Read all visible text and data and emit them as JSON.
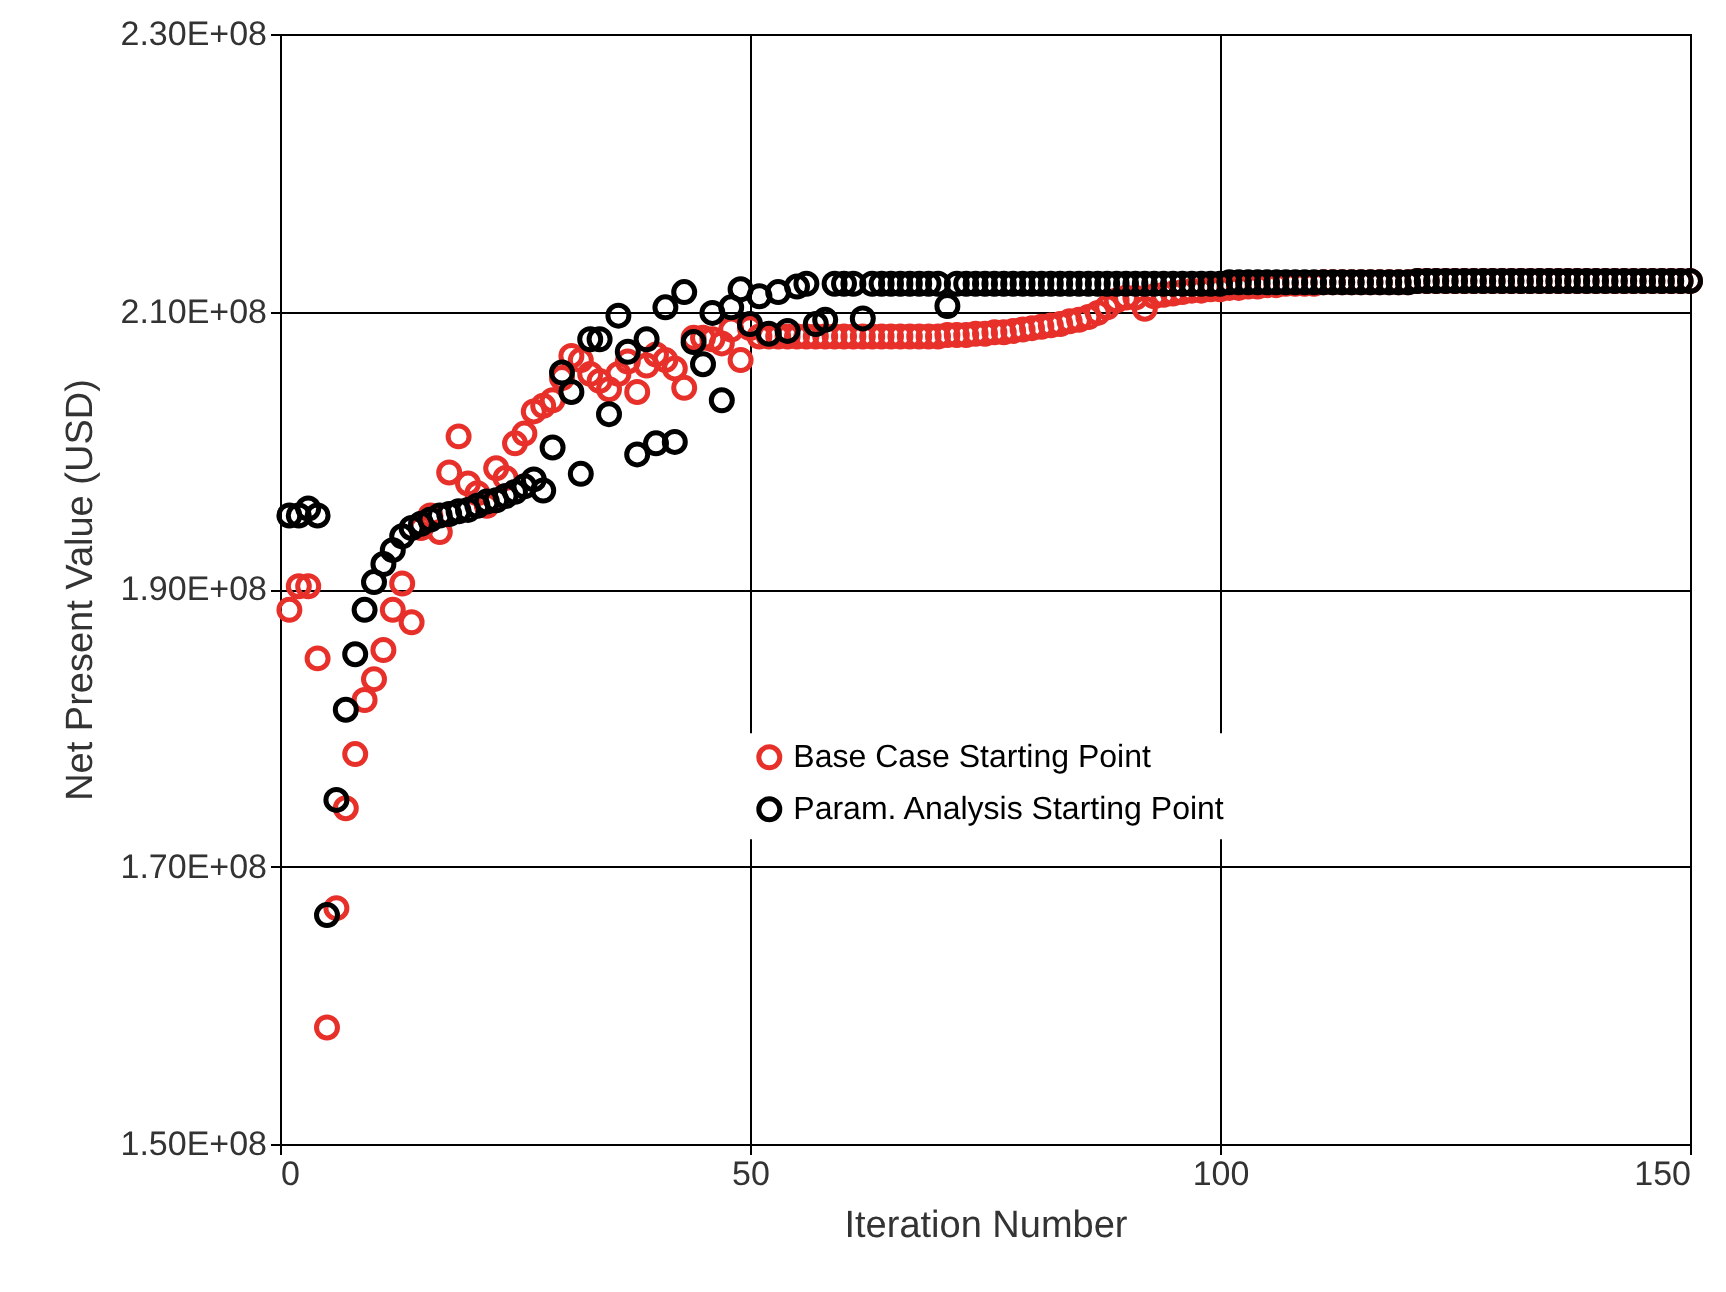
{
  "chart_data": {
    "type": "scatter",
    "xlabel": "Iteration Number",
    "ylabel": "Net Present Value (USD)",
    "x": [
      1,
      2,
      3,
      4,
      5,
      6,
      7,
      8,
      9,
      10,
      11,
      12,
      13,
      14,
      15,
      16,
      17,
      18,
      19,
      20,
      21,
      22,
      23,
      24,
      25,
      26,
      27,
      28,
      29,
      30,
      31,
      32,
      33,
      34,
      35,
      36,
      37,
      38,
      39,
      40,
      41,
      42,
      43,
      44,
      45,
      46,
      47,
      48,
      49,
      50,
      51,
      52,
      53,
      54,
      55,
      56,
      57,
      58,
      59,
      60,
      61,
      62,
      63,
      64,
      65,
      66,
      67,
      68,
      69,
      70,
      71,
      72,
      73,
      74,
      75,
      76,
      77,
      78,
      79,
      80,
      81,
      82,
      83,
      84,
      85,
      86,
      87,
      88,
      89,
      90,
      91,
      92,
      93,
      94,
      95,
      96,
      97,
      98,
      99,
      100,
      101,
      102,
      103,
      104,
      105,
      106,
      107,
      108,
      109,
      110,
      111,
      112,
      113,
      114,
      115,
      116,
      117,
      118,
      119,
      120,
      121,
      122,
      123,
      124,
      125,
      126,
      127,
      128,
      129,
      130,
      131,
      132,
      133,
      134,
      135,
      136,
      137,
      138,
      139,
      140,
      141,
      142,
      143,
      144,
      145,
      146,
      147,
      148,
      149,
      150
    ],
    "series": [
      {
        "name": "Base Case Starting Point",
        "color": "#e8302a",
        "values": [
          188500000.0,
          190200000.0,
          190200000.0,
          185000000.0,
          158400000.0,
          167000000.0,
          174200000.0,
          178100000.0,
          182000000.0,
          183500000.0,
          185600000.0,
          188500000.0,
          190400000.0,
          187600000.0,
          194400000.0,
          195300000.0,
          194100000.0,
          198400000.0,
          201000000.0,
          197600000.0,
          196900000.0,
          196000000.0,
          198700000.0,
          198000000.0,
          200500000.0,
          201200000.0,
          202800000.0,
          203200000.0,
          203600000.0,
          205200000.0,
          206800000.0,
          206500000.0,
          205500000.0,
          205000000.0,
          204400000.0,
          205500000.0,
          206400000.0,
          204200000.0,
          206100000.0,
          206900000.0,
          206500000.0,
          205900000.0,
          204500000.0,
          208100000.0,
          208100000.0,
          208000000.0,
          207700000.0,
          208700000.0,
          206500000.0,
          208800000.0,
          208200000.0,
          208200000.0,
          208200000.0,
          208200000.0,
          208200000.0,
          208200000.0,
          208200000.0,
          208200000.0,
          208200000.0,
          208200000.0,
          208200000.0,
          208200000.0,
          208200000.0,
          208200000.0,
          208200000.0,
          208200000.0,
          208200000.0,
          208200000.0,
          208200000.0,
          208200000.0,
          208300000.0,
          208300000.0,
          208300000.0,
          208400000.0,
          208400000.0,
          208500000.0,
          208500000.0,
          208600000.0,
          208700000.0,
          208800000.0,
          208900000.0,
          209000000.0,
          209100000.0,
          209300000.0,
          209400000.0,
          209600000.0,
          209900000.0,
          210300000.0,
          210800000.0,
          211000000.0,
          211000000.0,
          210200000.0,
          211100000.0,
          211200000.0,
          211300000.0,
          211400000.0,
          211500000.0,
          211500000.0,
          211600000.0,
          211600000.0,
          211700000.0,
          211700000.0,
          211800000.0,
          211800000.0,
          211900000.0,
          211900000.0,
          212000000.0,
          212000000.0,
          212000000.0,
          212000000.0,
          212100000.0,
          212100000.0,
          212100000.0,
          212100000.0,
          212100000.0,
          212100000.0,
          212100000.0,
          212100000.0,
          212100000.0,
          212100000.0,
          212200000.0,
          212200000.0,
          212200000.0,
          212200000.0,
          212200000.0,
          212200000.0,
          212200000.0,
          212200000.0,
          212200000.0,
          212200000.0,
          212200000.0,
          212200000.0,
          212200000.0,
          212200000.0,
          212200000.0,
          212200000.0,
          212200000.0,
          212200000.0,
          212200000.0,
          212200000.0,
          212200000.0,
          212200000.0,
          212200000.0,
          212200000.0,
          212200000.0,
          212200000.0,
          212200000.0,
          212200000.0,
          212200000.0,
          212200000.0
        ]
      },
      {
        "name": "Param. Analysis Starting Point",
        "color": "#000000",
        "values": [
          195300000.0,
          195300000.0,
          195800000.0,
          195300000.0,
          166500000.0,
          174800000.0,
          181300000.0,
          185300000.0,
          188500000.0,
          190500000.0,
          191800000.0,
          192800000.0,
          193800000.0,
          194400000.0,
          194700000.0,
          195000000.0,
          195300000.0,
          195400000.0,
          195600000.0,
          195700000.0,
          196000000.0,
          196300000.0,
          196400000.0,
          196700000.0,
          197000000.0,
          197400000.0,
          197900000.0,
          197100000.0,
          200200000.0,
          205600000.0,
          204200000.0,
          198300000.0,
          208000000.0,
          208000000.0,
          202600000.0,
          209700000.0,
          207100000.0,
          199700000.0,
          208000000.0,
          200500000.0,
          210300000.0,
          200600000.0,
          211400000.0,
          207800000.0,
          206200000.0,
          209900000.0,
          203600000.0,
          210300000.0,
          211600000.0,
          209100000.0,
          211100000.0,
          208400000.0,
          211400000.0,
          208600000.0,
          211800000.0,
          212000000.0,
          209100000.0,
          209400000.0,
          212000000.0,
          212000000.0,
          212000000.0,
          209500000.0,
          212000000.0,
          212000000.0,
          212000000.0,
          212000000.0,
          212000000.0,
          212000000.0,
          212000000.0,
          212000000.0,
          210400000.0,
          212000000.0,
          212000000.0,
          212000000.0,
          212000000.0,
          212000000.0,
          212000000.0,
          212000000.0,
          212000000.0,
          212000000.0,
          212000000.0,
          212000000.0,
          212000000.0,
          212000000.0,
          212000000.0,
          212000000.0,
          212000000.0,
          212000000.0,
          212000000.0,
          212000000.0,
          212000000.0,
          212000000.0,
          212000000.0,
          212000000.0,
          212000000.0,
          212000000.0,
          212000000.0,
          212000000.0,
          212000000.0,
          212000000.0,
          212100000.0,
          212100000.0,
          212100000.0,
          212100000.0,
          212100000.0,
          212100000.0,
          212100000.0,
          212100000.0,
          212100000.0,
          212100000.0,
          212100000.0,
          212100000.0,
          212100000.0,
          212100000.0,
          212100000.0,
          212100000.0,
          212100000.0,
          212100000.0,
          212100000.0,
          212100000.0,
          212200000.0,
          212200000.0,
          212200000.0,
          212200000.0,
          212200000.0,
          212200000.0,
          212200000.0,
          212200000.0,
          212200000.0,
          212200000.0,
          212200000.0,
          212200000.0,
          212200000.0,
          212200000.0,
          212200000.0,
          212200000.0,
          212200000.0,
          212200000.0,
          212200000.0,
          212200000.0,
          212200000.0,
          212200000.0,
          212200000.0,
          212200000.0,
          212200000.0,
          212200000.0,
          212200000.0,
          212200000.0,
          212200000.0,
          212200000.0
        ]
      }
    ],
    "xlim": [
      0,
      150
    ],
    "xticks": [
      0,
      50,
      100,
      150
    ],
    "ylim": [
      150000000.0,
      230000000.0
    ],
    "yticks": [
      {
        "value": 150000000.0,
        "label": "1.50E+08"
      },
      {
        "value": 170000000.0,
        "label": "1.70E+08"
      },
      {
        "value": 190000000.0,
        "label": "1.90E+08"
      },
      {
        "value": 210000000.0,
        "label": "2.10E+08"
      },
      {
        "value": 230000000.0,
        "label": "2.30E+08"
      }
    ],
    "grid": true,
    "legend": "right",
    "marker": "circle"
  }
}
